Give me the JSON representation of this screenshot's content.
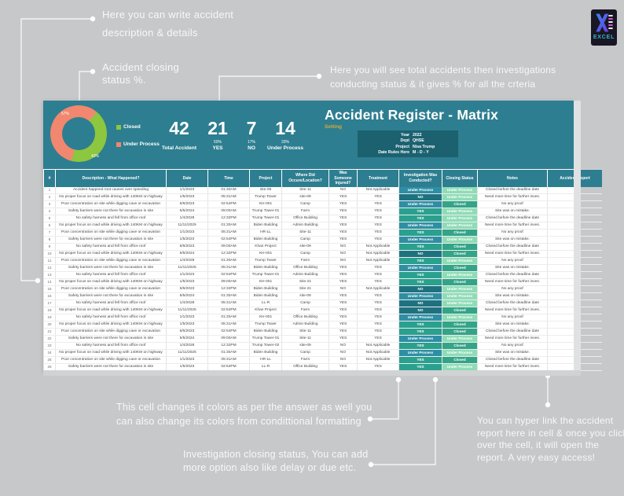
{
  "annotations": {
    "description_note": "Here you can write accident description & details",
    "closing_pct_note": "Accident closing status %.",
    "totals_note": "Here you will see total accidents then investigations conducting status & it gives % for all the crteria",
    "cell_colors_note": "This cell changes it colors as per the answer as well you can also change its colors from condittional formatting",
    "closing_options_note": "Investigation closing status, You can add more option also like delay or due etc.",
    "hyperlink_note": "You can hyper link the accident report here in cell & once you click over the cell, it will open the report. A very easy access!"
  },
  "logo": {
    "label": "EXCEL"
  },
  "dashboard": {
    "title": "Accident Register - Matrix",
    "setting_label": "Setting",
    "settings": [
      {
        "label": "Year",
        "value": "2022"
      },
      {
        "label": "Dept",
        "value": "QHSE"
      },
      {
        "label": "Project",
        "value": "Nisa Trump"
      },
      {
        "label": "Date Rules Here",
        "value": "M - D - Y"
      }
    ],
    "chart": {
      "type": "doughnut",
      "title": "Accident closing status %",
      "slices": [
        {
          "label": "Closed",
          "value": 43,
          "pct_label": "43%",
          "color": "#8dc63f"
        },
        {
          "label": "Under Process",
          "value": 57,
          "pct_label": "57%",
          "color": "#f1876e"
        }
      ]
    },
    "stats": [
      {
        "value": "42",
        "percent": "",
        "label": "Total Accident"
      },
      {
        "value": "21",
        "percent": "50%",
        "label": "YES"
      },
      {
        "value": "7",
        "percent": "17%",
        "label": "NO"
      },
      {
        "value": "14",
        "percent": "33%",
        "label": "Under Process"
      }
    ]
  },
  "colors": {
    "band_teal": "#2d7e90",
    "settings_box": "#1b6170",
    "investigation": {
      "YES": "#2aa08e",
      "NO": "#1e7280",
      "Under Process": "#2e8fa4"
    },
    "closing": {
      "Closed": "#33a488",
      "Under Process": "#8edcb6"
    }
  },
  "table": {
    "columns": [
      "#",
      "Description - What Happened?",
      "Date",
      "Time",
      "Project",
      "Where Did Occure/Location?",
      "Was Someone Injured?",
      "Treatment",
      "Investigation Was Conducted?",
      "Closing Status",
      "Notes",
      "Accident Report"
    ],
    "rows": [
      [
        "1",
        "Accident happned root causes over speeding",
        "1/1/2023",
        "01:30AM",
        "site-09",
        "Site-11",
        "NO",
        "Not Applicable",
        "Under Process",
        "Under Process",
        "Closed before the deadline date",
        ""
      ],
      [
        "2",
        "No proper focus on road while driving with 140KM on highway",
        "1/5/2023",
        "05:31AM",
        "Trump Tower",
        "site-09",
        "YES",
        "YES",
        "NO",
        "Under Process",
        "Need more time for further inves.",
        ""
      ],
      [
        "3",
        "Poor concentration on site while digging cave or excavation",
        "6/6/2023",
        "02:54PM",
        "KH-001",
        "Camp",
        "YES",
        "YES",
        "Under Process",
        "Closed",
        "No any proof",
        ""
      ],
      [
        "4",
        "Safety barriers were not there for excavation in site",
        "5/5/2024",
        "09:00AM",
        "Trump Tower-01",
        "Farm",
        "YES",
        "YES",
        "YES",
        "Under Process",
        "Site was on mistake.",
        ""
      ],
      [
        "5",
        "No safety harness and fell from office roof",
        "1/4/2028",
        "12:32PM",
        "Trump Tower-01",
        "Office Building",
        "YES",
        "YES",
        "YES",
        "Under Process",
        "Closed before the deadline date",
        ""
      ],
      [
        "6",
        "No proper focus on road while driving with 140KM on highway",
        "11/11/2025",
        "01:30AM",
        "Biden Building",
        "Admin Building",
        "YES",
        "YES",
        "Under Process",
        "Under Process",
        "Need more time for further inves.",
        ""
      ],
      [
        "7",
        "Poor concentration on site while digging cave or excavation",
        "1/1/2023",
        "05:31AM",
        "HR-LL",
        "Site-11",
        "YES",
        "YES",
        "YES",
        "Closed",
        "No any proof",
        ""
      ],
      [
        "8",
        "Safety barriers were not there for excavation in site",
        "1/5/2023",
        "02:54PM",
        "Biden Building",
        "Camp",
        "YES",
        "YES",
        "Under Process",
        "Under Process",
        "Site was on mistake.",
        ""
      ],
      [
        "9",
        "No safety harness and fell from office roof",
        "6/6/2023",
        "09:00AM",
        "Khan Project",
        "site-09",
        "NO",
        "Not Applicable",
        "YES",
        "Closed",
        "Closed before the deadline date",
        ""
      ],
      [
        "10",
        "No proper focus on road while driving with 140KM on highway",
        "5/5/2024",
        "12:32PM",
        "KH-001",
        "Camp",
        "NO",
        "Not Applicable",
        "NO",
        "Closed",
        "Need more time for further inves.",
        ""
      ],
      [
        "11",
        "Poor concentration on site while digging cave or excavation",
        "1/4/2028",
        "01:30AM",
        "Trump Tower",
        "Farm",
        "NO",
        "Not Applicable",
        "YES",
        "Under Process",
        "No any proof",
        ""
      ],
      [
        "12",
        "Safety barriers were not there for excavation in site",
        "11/11/2025",
        "05:31AM",
        "Biden Building",
        "Office Building",
        "YES",
        "YES",
        "Under Process",
        "Closed",
        "Site was on mistake.",
        ""
      ],
      [
        "13",
        "No safety harness and fell from office roof",
        "1/1/2023",
        "02:54PM",
        "Trump Tower-01",
        "Admin Building",
        "YES",
        "YES",
        "YES",
        "Under Process",
        "Closed before the deadline date",
        ""
      ],
      [
        "14",
        "No proper focus on road while driving with 140KM on highway",
        "1/5/2023",
        "09:00AM",
        "KH-001",
        "Site-21",
        "YES",
        "YES",
        "YES",
        "Closed",
        "Need more time for further inves.",
        ""
      ],
      [
        "15",
        "Poor concentration on site while digging cave or excavation",
        "6/6/2023",
        "12:32PM",
        "Biden Building",
        "Site-21",
        "NO",
        "Not Applicable",
        "NO",
        "Under Process",
        "No any proof",
        ""
      ],
      [
        "16",
        "Safety barriers were not there for excavation in site",
        "5/5/2024",
        "01:30AM",
        "Biden Building",
        "site-09",
        "YES",
        "YES",
        "Under Process",
        "Under Process",
        "Site was on mistake.",
        ""
      ],
      [
        "17",
        "No safety harness and fell from office roof",
        "1/4/2028",
        "05:31AM",
        "LL-R",
        "Camp",
        "YES",
        "YES",
        "NO",
        "Under Process",
        "Closed before the deadline date",
        ""
      ],
      [
        "18",
        "No proper focus on road while driving with 140KM on highway",
        "11/11/2025",
        "02:54PM",
        "Khan Project",
        "Farm",
        "YES",
        "YES",
        "NO",
        "Closed",
        "Need more time for further inves.",
        ""
      ],
      [
        "19",
        "No safety harness and fell from office roof",
        "1/1/2023",
        "01:30AM",
        "KH-001",
        "Office Building",
        "YES",
        "YES",
        "Under Process",
        "Under Process",
        "No any proof",
        ""
      ],
      [
        "20",
        "No proper focus on road while driving with 140KM on highway",
        "1/5/2023",
        "05:31AM",
        "Trump Tower",
        "Admin Building",
        "YES",
        "YES",
        "YES",
        "Closed",
        "Site was on mistake.",
        ""
      ],
      [
        "21",
        "Poor concentration on site while digging cave or excavation",
        "6/6/2023",
        "02:54PM",
        "Biden Building",
        "Site-11",
        "YES",
        "YES",
        "YES",
        "Closed",
        "Closed before the deadline date",
        ""
      ],
      [
        "22",
        "Safety barriers were not there for excavation in site",
        "5/5/2024",
        "09:00AM",
        "Trump Tower-01",
        "Site-11",
        "YES",
        "YES",
        "Under Process",
        "Under Process",
        "Need more time for further inves.",
        ""
      ],
      [
        "23",
        "No safety harness and fell from office roof",
        "1/4/2028",
        "12:32PM",
        "Trump Tower-02",
        "site-09",
        "NO",
        "Not Applicable",
        "YES",
        "Closed",
        "No any proof",
        ""
      ],
      [
        "24",
        "No proper focus on road while driving with 140KM on highway",
        "11/11/2025",
        "01:30AM",
        "Biden Building",
        "Camp",
        "NO",
        "Not Applicable",
        "Under Process",
        "Under Process",
        "Site was on mistake.",
        ""
      ],
      [
        "25",
        "Poor concentration on site while digging cave or excavation",
        "1/1/2023",
        "05:31AM",
        "HR-LL",
        "Farm",
        "NO",
        "Not Applicable",
        "YES",
        "Closed",
        "Closed before the deadline date",
        ""
      ],
      [
        "26",
        "Safety barriers were not there for excavation in site",
        "1/5/2023",
        "02:54PM",
        "LL-R",
        "Office Building",
        "YES",
        "YES",
        "YES",
        "Under Process",
        "Need more time for further inves.",
        ""
      ]
    ]
  }
}
